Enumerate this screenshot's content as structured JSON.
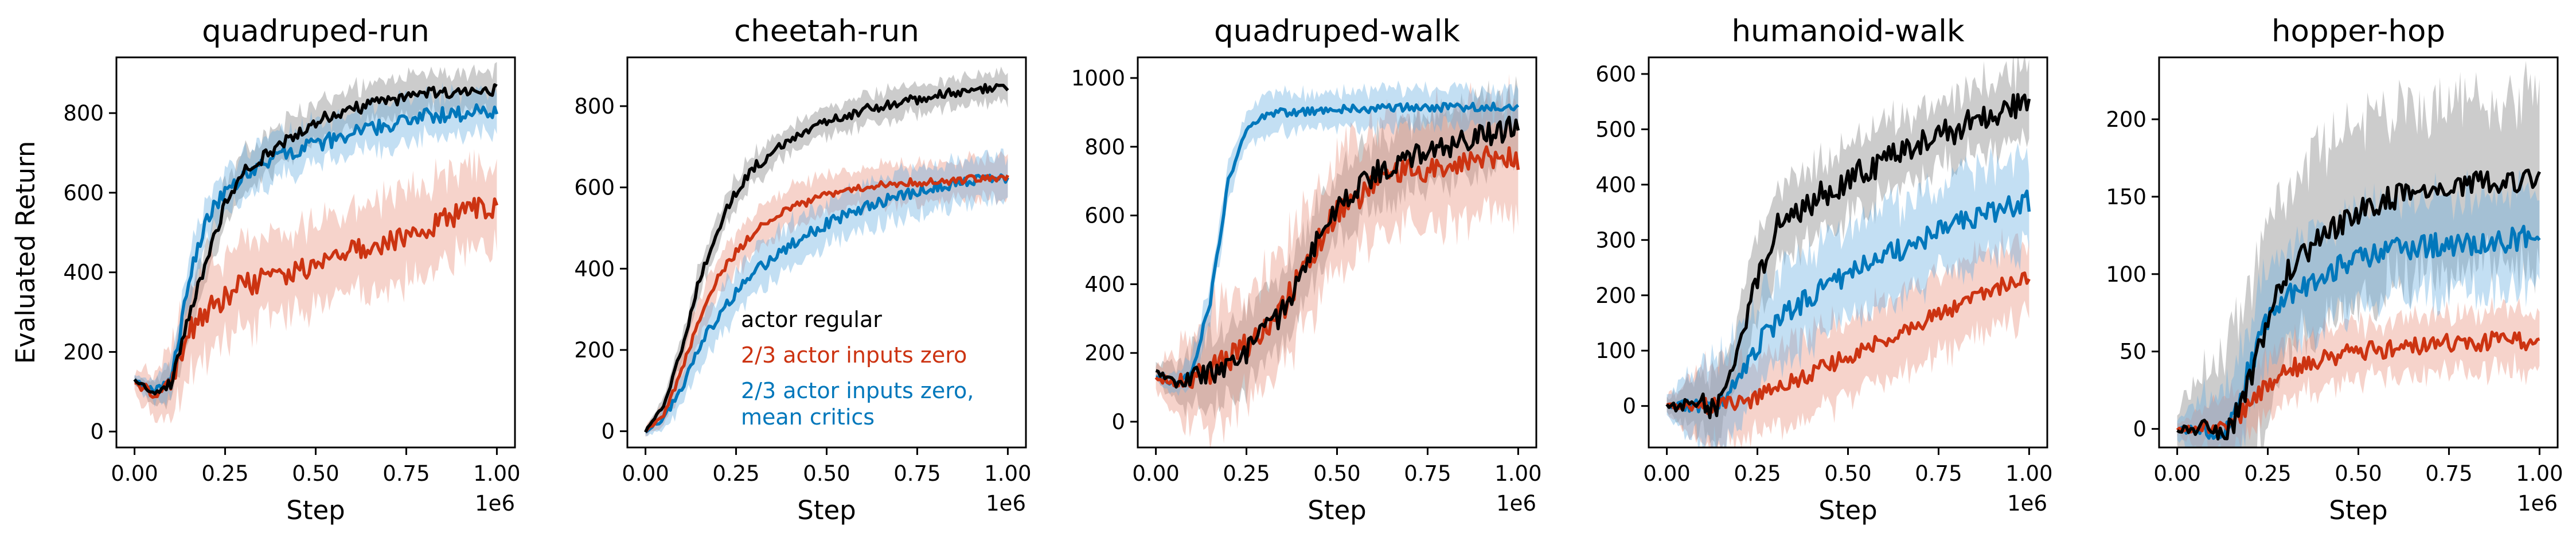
{
  "figure": {
    "ylabel": "Evaluated Return",
    "colors": {
      "black": "#000000",
      "red": "#cc3311",
      "blue": "#0077bb",
      "band_black": "#7f7f7f",
      "band_red": "#e8907c",
      "band_blue": "#6aaee0"
    },
    "legend": {
      "items": [
        {
          "label": "actor regular",
          "color": "#000000"
        },
        {
          "label": "2/3 actor inputs zero",
          "color": "#cc3311"
        },
        {
          "label": "2/3 actor inputs zero,",
          "label2": "mean critics",
          "color": "#0077bb"
        }
      ]
    }
  },
  "chart_data": [
    {
      "type": "line",
      "title": "quadruped-run",
      "xlabel": "Step",
      "x_offset": "1e6",
      "xlim": [
        -0.05,
        1.05
      ],
      "ylim": [
        -40,
        940
      ],
      "xticks": [
        0.0,
        0.25,
        0.5,
        0.75,
        1.0
      ],
      "xtick_labels": [
        "0.00",
        "0.25",
        "0.50",
        "0.75",
        "1.00"
      ],
      "yticks": [
        0,
        200,
        400,
        600,
        800
      ],
      "ytick_labels": [
        "0",
        "200",
        "400",
        "600",
        "800"
      ],
      "series": [
        {
          "name": "actor regular",
          "color": "black",
          "x": [
            0,
            0.05,
            0.1,
            0.15,
            0.2,
            0.25,
            0.3,
            0.4,
            0.5,
            0.6,
            0.7,
            0.8,
            0.9,
            1.0
          ],
          "y": [
            130,
            100,
            120,
            290,
            430,
            570,
            650,
            720,
            780,
            810,
            830,
            850,
            855,
            860
          ],
          "spread": 55,
          "noise": 15
        },
        {
          "name": "2/3 actor inputs zero",
          "color": "red",
          "x": [
            0,
            0.05,
            0.1,
            0.15,
            0.2,
            0.25,
            0.3,
            0.4,
            0.5,
            0.6,
            0.7,
            0.8,
            0.9,
            1.0
          ],
          "y": [
            120,
            100,
            110,
            250,
            300,
            340,
            370,
            390,
            420,
            450,
            480,
            510,
            550,
            570
          ],
          "spread": 120,
          "noise": 30
        },
        {
          "name": "2/3 actor inputs zero, mean critics",
          "color": "blue",
          "x": [
            0,
            0.05,
            0.1,
            0.15,
            0.2,
            0.25,
            0.3,
            0.4,
            0.5,
            0.6,
            0.7,
            0.8,
            0.9,
            1.0
          ],
          "y": [
            130,
            100,
            120,
            380,
            540,
            600,
            640,
            690,
            720,
            750,
            770,
            790,
            800,
            810
          ],
          "spread": 60,
          "noise": 20
        }
      ]
    },
    {
      "type": "line",
      "title": "cheetah-run",
      "xlabel": "Step",
      "x_offset": "1e6",
      "xlim": [
        -0.05,
        1.05
      ],
      "ylim": [
        -40,
        920
      ],
      "xticks": [
        0.0,
        0.25,
        0.5,
        0.75,
        1.0
      ],
      "xtick_labels": [
        "0.00",
        "0.25",
        "0.50",
        "0.75",
        "1.00"
      ],
      "yticks": [
        0,
        200,
        400,
        600,
        800
      ],
      "ytick_labels": [
        "0",
        "200",
        "400",
        "600",
        "800"
      ],
      "series": [
        {
          "name": "actor regular",
          "color": "black",
          "x": [
            0,
            0.05,
            0.1,
            0.15,
            0.2,
            0.25,
            0.3,
            0.4,
            0.5,
            0.6,
            0.7,
            0.8,
            0.9,
            1.0
          ],
          "y": [
            0,
            60,
            200,
            380,
            500,
            590,
            650,
            720,
            760,
            790,
            810,
            825,
            840,
            850
          ],
          "spread": 40,
          "noise": 12
        },
        {
          "name": "2/3 actor inputs zero",
          "color": "red",
          "x": [
            0,
            0.05,
            0.1,
            0.15,
            0.2,
            0.25,
            0.3,
            0.4,
            0.5,
            0.6,
            0.7,
            0.8,
            0.9,
            1.0
          ],
          "y": [
            0,
            40,
            150,
            280,
            380,
            440,
            490,
            550,
            580,
            600,
            610,
            615,
            620,
            625
          ],
          "spread": 55,
          "noise": 10
        },
        {
          "name": "2/3 actor inputs zero, mean critics",
          "color": "blue",
          "x": [
            0,
            0.05,
            0.1,
            0.15,
            0.2,
            0.25,
            0.3,
            0.4,
            0.5,
            0.6,
            0.7,
            0.8,
            0.9,
            1.0
          ],
          "y": [
            0,
            30,
            110,
            210,
            280,
            340,
            390,
            460,
            510,
            550,
            580,
            600,
            615,
            625
          ],
          "spread": 60,
          "noise": 14
        }
      ]
    },
    {
      "type": "line",
      "title": "quadruped-walk",
      "xlabel": "Step",
      "x_offset": "1e6",
      "xlim": [
        -0.05,
        1.05
      ],
      "ylim": [
        -75,
        1060
      ],
      "xticks": [
        0.0,
        0.25,
        0.5,
        0.75,
        1.0
      ],
      "xtick_labels": [
        "0.00",
        "0.25",
        "0.50",
        "0.75",
        "1.00"
      ],
      "yticks": [
        0,
        200,
        400,
        600,
        800,
        1000
      ],
      "ytick_labels": [
        "0",
        "200",
        "400",
        "600",
        "800",
        "1000"
      ],
      "series": [
        {
          "name": "actor regular",
          "color": "black",
          "x": [
            0,
            0.05,
            0.1,
            0.15,
            0.2,
            0.25,
            0.3,
            0.35,
            0.4,
            0.45,
            0.5,
            0.6,
            0.7,
            0.8,
            0.9,
            1.0
          ],
          "y": [
            150,
            110,
            130,
            140,
            160,
            200,
            260,
            320,
            430,
            540,
            620,
            720,
            770,
            800,
            830,
            860
          ],
          "spread": 110,
          "noise": 35
        },
        {
          "name": "2/3 actor inputs zero",
          "color": "red",
          "x": [
            0,
            0.05,
            0.1,
            0.15,
            0.2,
            0.25,
            0.3,
            0.35,
            0.4,
            0.45,
            0.5,
            0.6,
            0.7,
            0.8,
            0.9,
            1.0
          ],
          "y": [
            130,
            110,
            130,
            150,
            180,
            220,
            260,
            330,
            430,
            520,
            610,
            690,
            730,
            750,
            760,
            770
          ],
          "spread": 180,
          "noise": 40
        },
        {
          "name": "2/3 actor inputs zero, mean critics",
          "color": "blue",
          "x": [
            0,
            0.05,
            0.1,
            0.15,
            0.2,
            0.25,
            0.3,
            0.35,
            0.4,
            0.45,
            0.5,
            0.6,
            0.7,
            0.8,
            0.9,
            1.0
          ],
          "y": [
            130,
            110,
            150,
            350,
            700,
            860,
            890,
            900,
            900,
            905,
            910,
            910,
            915,
            915,
            915,
            915
          ],
          "spread": 60,
          "noise": 12
        }
      ]
    },
    {
      "type": "line",
      "title": "humanoid-walk",
      "xlabel": "Step",
      "x_offset": "1e6",
      "xlim": [
        -0.05,
        1.05
      ],
      "ylim": [
        -75,
        630
      ],
      "xticks": [
        0.0,
        0.25,
        0.5,
        0.75,
        1.0
      ],
      "xtick_labels": [
        "0.00",
        "0.25",
        "0.50",
        "0.75",
        "1.00"
      ],
      "yticks": [
        0,
        100,
        200,
        300,
        400,
        500,
        600
      ],
      "ytick_labels": [
        "0",
        "100",
        "200",
        "300",
        "400",
        "500",
        "600"
      ],
      "series": [
        {
          "name": "actor regular",
          "color": "black",
          "x": [
            0,
            0.1,
            0.15,
            0.2,
            0.25,
            0.3,
            0.4,
            0.5,
            0.6,
            0.7,
            0.8,
            0.9,
            1.0
          ],
          "y": [
            0,
            0,
            5,
            120,
            230,
            320,
            370,
            410,
            440,
            480,
            500,
            530,
            550
          ],
          "spread": 70,
          "noise": 25
        },
        {
          "name": "2/3 actor inputs zero",
          "color": "red",
          "x": [
            0,
            0.1,
            0.15,
            0.2,
            0.25,
            0.3,
            0.4,
            0.5,
            0.6,
            0.7,
            0.8,
            0.9,
            1.0
          ],
          "y": [
            0,
            0,
            0,
            5,
            15,
            30,
            60,
            90,
            120,
            150,
            180,
            210,
            235
          ],
          "spread": 80,
          "noise": 15
        },
        {
          "name": "2/3 actor inputs zero, mean critics",
          "color": "blue",
          "x": [
            0,
            0.1,
            0.15,
            0.2,
            0.25,
            0.3,
            0.4,
            0.5,
            0.6,
            0.7,
            0.8,
            0.9,
            1.0
          ],
          "y": [
            0,
            0,
            5,
            60,
            110,
            150,
            200,
            240,
            270,
            300,
            330,
            350,
            370
          ],
          "spread": 90,
          "noise": 20
        }
      ]
    },
    {
      "type": "line",
      "title": "hopper-hop",
      "xlabel": "Step",
      "x_offset": "1e6",
      "xlim": [
        -0.05,
        1.05
      ],
      "ylim": [
        -12,
        240
      ],
      "xticks": [
        0.0,
        0.25,
        0.5,
        0.75,
        1.0
      ],
      "xtick_labels": [
        "0.00",
        "0.25",
        "0.50",
        "0.75",
        "1.00"
      ],
      "yticks": [
        0,
        50,
        100,
        150,
        200
      ],
      "ytick_labels": [
        "0",
        "50",
        "100",
        "150",
        "200"
      ],
      "series": [
        {
          "name": "actor regular",
          "color": "black",
          "x": [
            0,
            0.1,
            0.15,
            0.2,
            0.25,
            0.3,
            0.4,
            0.5,
            0.6,
            0.7,
            0.8,
            0.9,
            1.0
          ],
          "y": [
            0,
            0,
            2,
            30,
            70,
            100,
            125,
            140,
            150,
            155,
            158,
            160,
            160
          ],
          "spread": 60,
          "noise": 8
        },
        {
          "name": "2/3 actor inputs zero",
          "color": "red",
          "x": [
            0,
            0.1,
            0.15,
            0.2,
            0.25,
            0.3,
            0.4,
            0.5,
            0.6,
            0.7,
            0.8,
            0.9,
            1.0
          ],
          "y": [
            0,
            0,
            3,
            15,
            28,
            38,
            45,
            50,
            52,
            55,
            56,
            57,
            57
          ],
          "spread": 20,
          "noise": 6
        },
        {
          "name": "2/3 actor inputs zero, mean critics",
          "color": "blue",
          "x": [
            0,
            0.1,
            0.15,
            0.2,
            0.25,
            0.3,
            0.4,
            0.5,
            0.6,
            0.7,
            0.8,
            0.9,
            1.0
          ],
          "y": [
            0,
            0,
            5,
            40,
            70,
            85,
            100,
            110,
            115,
            118,
            120,
            122,
            125
          ],
          "spread": 35,
          "noise": 8
        }
      ]
    }
  ]
}
